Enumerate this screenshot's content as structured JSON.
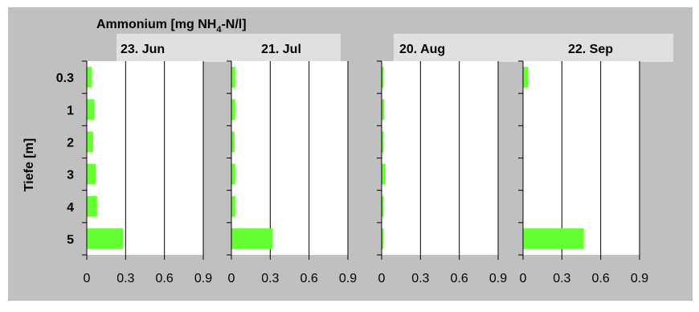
{
  "chart_data": {
    "type": "bar",
    "orientation": "horizontal",
    "title_prefix": "Ammonium [mg NH",
    "title_sub": "4",
    "title_suffix": "-N/l]",
    "ylabel": "Tiefe [m]",
    "categories": [
      "0.3",
      "1",
      "2",
      "3",
      "4",
      "5"
    ],
    "xlim": [
      0,
      0.9
    ],
    "xticks": [
      "0",
      "0.3",
      "0.6",
      "0.9"
    ],
    "grid": true,
    "colors": {
      "background": "#c0c0c0",
      "bar": "#66ff33",
      "date_label_bg": "#e0e0e0",
      "plot": "#ffffff"
    },
    "panels": [
      {
        "date": "23. Jun",
        "values": [
          0.04,
          0.06,
          0.05,
          0.07,
          0.08,
          0.28
        ]
      },
      {
        "date": "21. Jul",
        "values": [
          0.03,
          0.03,
          0.025,
          0.03,
          0.03,
          0.32
        ]
      },
      {
        "date": "20. Aug",
        "values": [
          0.015,
          0.02,
          0.015,
          0.03,
          0.015,
          0.015
        ]
      },
      {
        "date": "22. Sep",
        "values": [
          0.04,
          0,
          0,
          0,
          0,
          0.47
        ]
      }
    ]
  }
}
